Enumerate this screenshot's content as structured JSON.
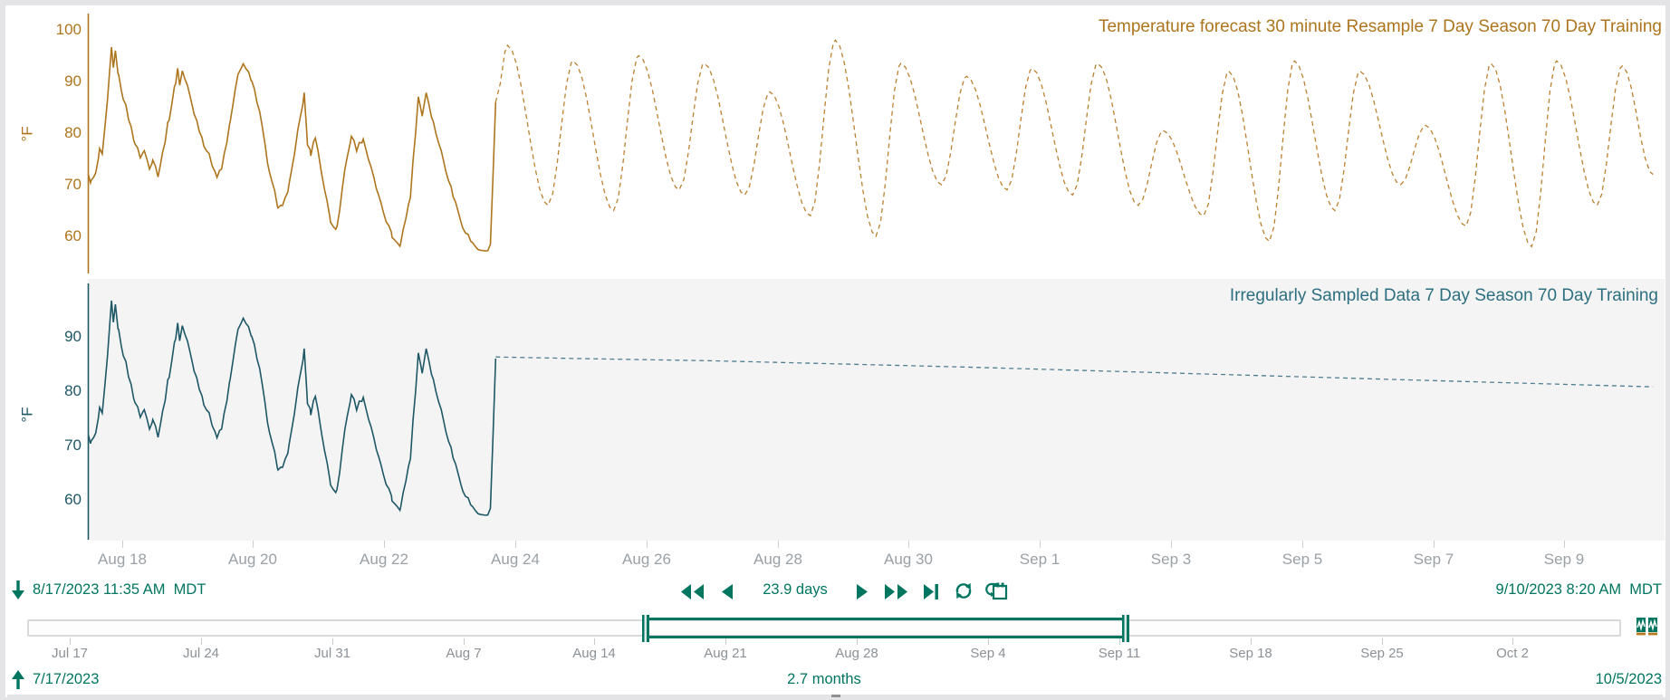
{
  "colors": {
    "accent_green": "#00755f",
    "top_series": "#ad751d",
    "top_forecast": "#bb8130",
    "bottom_series": "#1e5766",
    "bottom_forecast": "#4f7e93",
    "bottom_panel_bg": "#f4f4f4",
    "axis_label_gray": "#9aa1a6",
    "slider_label_gray": "#8b9196"
  },
  "icons": {
    "skip_back": "double-left-triangle",
    "step_back": "left-triangle",
    "step_forward": "right-triangle",
    "fast_forward": "double-right-triangle",
    "jump_to_end": "right-triangle-with-bar",
    "refresh": "circular-arrows",
    "calendar_apply": "calendar-with-curved-arrow",
    "range_start_extend": "down-arrow",
    "slider_start_shift": "up-arrow",
    "full_range_trends": "two-mini-trend-squares"
  },
  "toolbar": {
    "start_time": "8/17/2023 11:35 AM",
    "start_tz": "MDT",
    "window_label": "23.9 days",
    "end_time": "9/10/2023 8:20 AM",
    "end_tz": "MDT"
  },
  "time_axis": {
    "labels": [
      "Aug 18",
      "Aug 20",
      "Aug 22",
      "Aug 24",
      "Aug 26",
      "Aug 28",
      "Aug 30",
      "Sep 1",
      "Sep 3",
      "Sep 5",
      "Sep 7",
      "Sep 9"
    ]
  },
  "range_slider": {
    "labels": [
      "Jul 17",
      "Jul 24",
      "Jul 31",
      "Aug 7",
      "Aug 14",
      "Aug 21",
      "Aug 28",
      "Sep 4",
      "Sep 11",
      "Sep 18",
      "Sep 25",
      "Oct 2"
    ],
    "start_date": "7/17/2023",
    "end_date": "10/5/2023",
    "span_label": "2.7 months",
    "selection_start": "8/17/2023",
    "selection_end": "9/10/2023"
  },
  "chart_data": [
    {
      "id": "top",
      "type": "line",
      "title": "Temperature forecast 30 minute Resample 7 Day Season 70 Day Training",
      "ylabel": "°F",
      "y_ticks": [
        100,
        90,
        80,
        70,
        60
      ],
      "ylim": [
        53,
        103
      ],
      "x_start": "8/17/2023 11:35 AM MDT",
      "x_end": "9/10/2023 8:20 AM MDT",
      "grid": false,
      "legend": "none",
      "series": [
        {
          "name": "measured",
          "style": "solid",
          "color": "#ad751d",
          "interp": "linear",
          "jitter": 1.1,
          "points": [
            [
              0.48,
              72
            ],
            [
              0.53,
              70.5
            ],
            [
              0.6,
              72
            ],
            [
              0.66,
              76.5
            ],
            [
              0.7,
              75.5
            ],
            [
              0.78,
              86
            ],
            [
              0.84,
              96.5
            ],
            [
              0.87,
              93
            ],
            [
              0.9,
              95.5
            ],
            [
              0.95,
              91
            ],
            [
              1.02,
              87
            ],
            [
              1.1,
              83
            ],
            [
              1.2,
              78
            ],
            [
              1.28,
              75.5
            ],
            [
              1.34,
              76.5
            ],
            [
              1.42,
              73.5
            ],
            [
              1.47,
              75
            ],
            [
              1.55,
              72
            ],
            [
              1.62,
              76
            ],
            [
              1.72,
              83
            ],
            [
              1.82,
              90
            ],
            [
              1.85,
              92.5
            ],
            [
              1.88,
              89.5
            ],
            [
              1.92,
              92
            ],
            [
              2.0,
              89
            ],
            [
              2.1,
              84
            ],
            [
              2.25,
              78
            ],
            [
              2.38,
              74
            ],
            [
              2.45,
              71.5
            ],
            [
              2.52,
              73
            ],
            [
              2.65,
              82
            ],
            [
              2.78,
              92
            ],
            [
              2.85,
              93
            ],
            [
              2.98,
              90.5
            ],
            [
              3.1,
              84
            ],
            [
              3.25,
              72
            ],
            [
              3.38,
              66
            ],
            [
              3.45,
              65.5
            ],
            [
              3.55,
              70
            ],
            [
              3.68,
              80
            ],
            [
              3.78,
              87.5
            ],
            [
              3.83,
              78
            ],
            [
              3.88,
              76
            ],
            [
              3.95,
              79.5
            ],
            [
              4.05,
              72
            ],
            [
              4.18,
              63
            ],
            [
              4.28,
              61.5
            ],
            [
              4.4,
              73
            ],
            [
              4.5,
              79.5
            ],
            [
              4.58,
              77
            ],
            [
              4.68,
              79
            ],
            [
              4.8,
              73
            ],
            [
              4.95,
              66
            ],
            [
              5.12,
              60
            ],
            [
              5.25,
              58.5
            ],
            [
              5.4,
              68
            ],
            [
              5.52,
              87
            ],
            [
              5.58,
              83.5
            ],
            [
              5.64,
              88
            ],
            [
              5.75,
              82
            ],
            [
              5.9,
              75
            ],
            [
              6.05,
              68
            ],
            [
              6.2,
              62
            ],
            [
              6.35,
              58.5
            ],
            [
              6.5,
              57
            ],
            [
              6.62,
              58
            ],
            [
              6.7,
              86
            ]
          ]
        },
        {
          "name": "forecast",
          "style": "dashed",
          "color": "#bb8130",
          "interp": "cosine",
          "jitter": 0,
          "points": [
            [
              6.7,
              86
            ],
            [
              6.88,
              97
            ],
            [
              7.5,
              66
            ],
            [
              7.88,
              94
            ],
            [
              8.5,
              65
            ],
            [
              8.88,
              95
            ],
            [
              9.5,
              69
            ],
            [
              9.88,
              93.5
            ],
            [
              10.5,
              68
            ],
            [
              10.88,
              88
            ],
            [
              11.5,
              64
            ],
            [
              11.88,
              98
            ],
            [
              12.5,
              60
            ],
            [
              12.88,
              93.5
            ],
            [
              13.5,
              70
            ],
            [
              13.88,
              91
            ],
            [
              14.5,
              69
            ],
            [
              14.88,
              92.5
            ],
            [
              15.5,
              68
            ],
            [
              15.88,
              93.5
            ],
            [
              16.5,
              66
            ],
            [
              16.88,
              80.5
            ],
            [
              17.5,
              64
            ],
            [
              17.88,
              92
            ],
            [
              18.5,
              59
            ],
            [
              18.88,
              94
            ],
            [
              19.5,
              65
            ],
            [
              19.88,
              92
            ],
            [
              20.5,
              70
            ],
            [
              20.88,
              81.5
            ],
            [
              21.5,
              62
            ],
            [
              21.88,
              93.5
            ],
            [
              22.5,
              58
            ],
            [
              22.88,
              94
            ],
            [
              23.5,
              66
            ],
            [
              23.88,
              93
            ],
            [
              24.35,
              72
            ]
          ]
        }
      ]
    },
    {
      "id": "bottom",
      "type": "line",
      "title": "Irregularly Sampled Data 7 Day Season 70 Day Training",
      "ylabel": "°F",
      "y_ticks": [
        90,
        80,
        70,
        60
      ],
      "ylim": [
        52.5,
        99.5
      ],
      "x_start": "8/17/2023 11:35 AM MDT",
      "x_end": "9/10/2023 8:20 AM MDT",
      "grid": false,
      "legend": "none",
      "series": [
        {
          "name": "measured",
          "style": "solid",
          "color": "#1e5766",
          "interp": "linear",
          "jitter": 1.1,
          "points": [
            [
              0.48,
              72
            ],
            [
              0.53,
              70.5
            ],
            [
              0.6,
              72
            ],
            [
              0.66,
              76.5
            ],
            [
              0.7,
              75.5
            ],
            [
              0.78,
              86
            ],
            [
              0.84,
              96.5
            ],
            [
              0.87,
              93
            ],
            [
              0.9,
              95.5
            ],
            [
              0.95,
              91
            ],
            [
              1.02,
              87
            ],
            [
              1.1,
              83
            ],
            [
              1.2,
              78
            ],
            [
              1.28,
              75.5
            ],
            [
              1.34,
              76.5
            ],
            [
              1.42,
              73.5
            ],
            [
              1.47,
              75
            ],
            [
              1.55,
              72
            ],
            [
              1.62,
              76
            ],
            [
              1.72,
              83
            ],
            [
              1.82,
              90
            ],
            [
              1.85,
              92.5
            ],
            [
              1.88,
              89.5
            ],
            [
              1.92,
              92
            ],
            [
              2.0,
              89
            ],
            [
              2.1,
              84
            ],
            [
              2.25,
              78
            ],
            [
              2.38,
              74
            ],
            [
              2.45,
              71.5
            ],
            [
              2.52,
              73
            ],
            [
              2.65,
              82
            ],
            [
              2.78,
              92
            ],
            [
              2.85,
              93
            ],
            [
              2.98,
              90.5
            ],
            [
              3.1,
              84
            ],
            [
              3.25,
              72
            ],
            [
              3.38,
              66
            ],
            [
              3.45,
              65.5
            ],
            [
              3.55,
              70
            ],
            [
              3.68,
              80
            ],
            [
              3.78,
              87.5
            ],
            [
              3.83,
              78
            ],
            [
              3.88,
              76
            ],
            [
              3.95,
              79.5
            ],
            [
              4.05,
              72
            ],
            [
              4.18,
              63
            ],
            [
              4.28,
              61.5
            ],
            [
              4.4,
              73
            ],
            [
              4.5,
              79.5
            ],
            [
              4.58,
              77
            ],
            [
              4.68,
              79
            ],
            [
              4.8,
              73
            ],
            [
              4.95,
              66
            ],
            [
              5.12,
              60
            ],
            [
              5.25,
              58.5
            ],
            [
              5.4,
              68
            ],
            [
              5.52,
              87
            ],
            [
              5.58,
              83.5
            ],
            [
              5.64,
              88
            ],
            [
              5.75,
              82
            ],
            [
              5.9,
              75
            ],
            [
              6.05,
              68
            ],
            [
              6.2,
              62
            ],
            [
              6.35,
              58.5
            ],
            [
              6.5,
              57
            ],
            [
              6.62,
              58
            ],
            [
              6.7,
              86
            ]
          ]
        },
        {
          "name": "forecast",
          "style": "dashed",
          "color": "#4f7e93",
          "interp": "linear",
          "jitter": 0,
          "points": [
            [
              6.7,
              86.3
            ],
            [
              8,
              86
            ],
            [
              10,
              85.6
            ],
            [
              12,
              85
            ],
            [
              14,
              84.4
            ],
            [
              16,
              83.7
            ],
            [
              18,
              83
            ],
            [
              20,
              82.3
            ],
            [
              22,
              81.6
            ],
            [
              24.35,
              80.8
            ]
          ]
        }
      ]
    }
  ]
}
